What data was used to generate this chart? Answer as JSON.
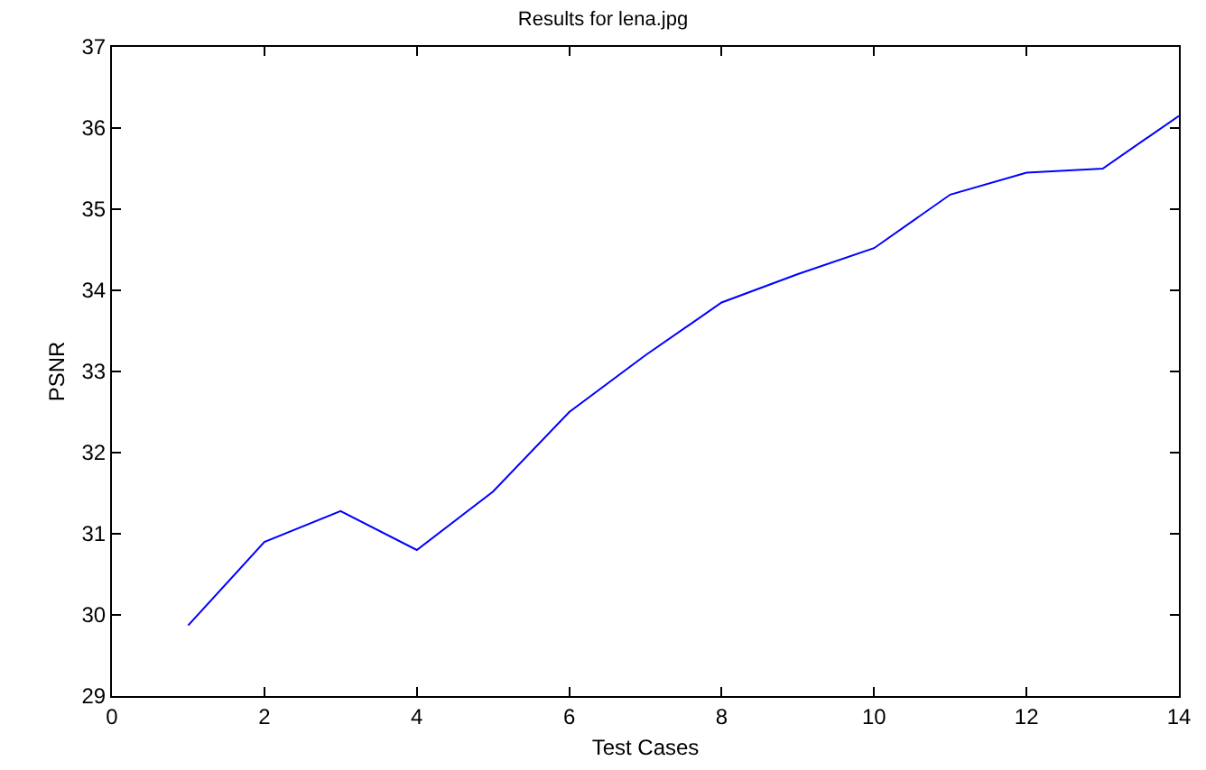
{
  "chart_data": {
    "type": "line",
    "title": "Results for lena.jpg",
    "xlabel": "Test Cases",
    "ylabel": "PSNR",
    "x": [
      1,
      2,
      3,
      4,
      5,
      6,
      7,
      8,
      9,
      10,
      11,
      12,
      13,
      14
    ],
    "series": [
      {
        "color": "#0000ff",
        "values": [
          29.87,
          30.9,
          31.28,
          30.8,
          31.52,
          32.5,
          33.2,
          33.85,
          34.2,
          34.52,
          35.18,
          35.45,
          35.5,
          36.15
        ]
      }
    ],
    "xlim": [
      0,
      14
    ],
    "xticks": [
      0,
      2,
      4,
      6,
      8,
      10,
      12,
      14
    ],
    "ylim": [
      29,
      37
    ],
    "yticks": [
      29,
      30,
      31,
      32,
      33,
      34,
      35,
      36,
      37
    ],
    "grid": false,
    "legend": false,
    "marker": "none",
    "line_style": "solid"
  }
}
